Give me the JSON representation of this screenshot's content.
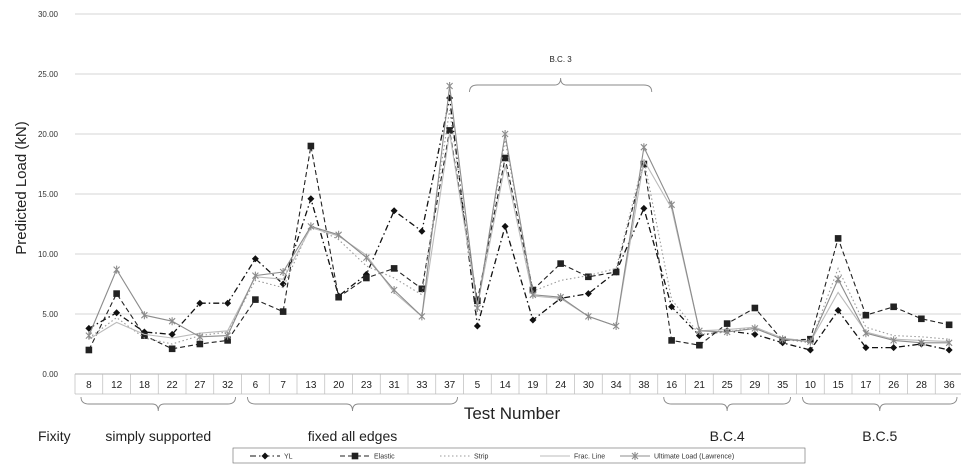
{
  "chart_data": {
    "type": "line",
    "title": "",
    "ylabel": "Predicted Load (kN)",
    "xlabel": "Test Number",
    "ylim": [
      0,
      30
    ],
    "y_ticks": [
      "0.00",
      "5.00",
      "10.00",
      "15.00",
      "20.00",
      "25.00",
      "30.00"
    ],
    "grid": true,
    "categories": [
      "8",
      "12",
      "18",
      "22",
      "27",
      "32",
      "6",
      "7",
      "13",
      "20",
      "23",
      "31",
      "33",
      "37",
      "5",
      "14",
      "19",
      "24",
      "30",
      "34",
      "38",
      "16",
      "21",
      "25",
      "29",
      "35",
      "10",
      "15",
      "17",
      "26",
      "28",
      "36"
    ],
    "groups_label": "Fixity",
    "groups": [
      {
        "label": "simply supported",
        "start": 0,
        "end": 5,
        "brace_position": "below"
      },
      {
        "label": "fixed all edges",
        "start": 6,
        "end": 13,
        "brace_position": "below"
      },
      {
        "label": "B.C. 3",
        "start": 14,
        "end": 20,
        "brace_position": "above"
      },
      {
        "label": "B.C.4",
        "start": 21,
        "end": 25,
        "brace_position": "below"
      },
      {
        "label": "B.C.5",
        "start": 26,
        "end": 31,
        "brace_position": "below"
      }
    ],
    "series": [
      {
        "name": "YL",
        "color": "#111111",
        "style": "dash-dot",
        "marker": "diamond",
        "values": [
          3.8,
          5.1,
          3.5,
          3.3,
          5.9,
          5.9,
          9.6,
          7.5,
          14.6,
          6.5,
          8.3,
          13.6,
          11.9,
          23.0,
          4.0,
          12.3,
          4.5,
          6.3,
          6.7,
          8.5,
          13.8,
          5.6,
          3.2,
          3.6,
          3.3,
          2.6,
          2.0,
          5.3,
          2.2,
          2.2,
          2.5,
          2.0
        ]
      },
      {
        "name": "Elastic",
        "color": "#222222",
        "style": "dashed",
        "marker": "square",
        "values": [
          2.0,
          6.7,
          3.2,
          2.1,
          2.5,
          2.8,
          6.2,
          5.2,
          19.0,
          6.4,
          8.0,
          8.8,
          7.1,
          20.3,
          6.1,
          18.0,
          7.0,
          9.2,
          8.1,
          8.5,
          17.5,
          2.8,
          2.4,
          4.2,
          5.5,
          2.8,
          2.9,
          11.3,
          4.9,
          5.6,
          4.6,
          4.1
        ]
      },
      {
        "name": "Strip",
        "color": "#999999",
        "style": "dotted",
        "marker": "none",
        "values": [
          3.0,
          4.7,
          3.0,
          2.5,
          3.2,
          3.5,
          7.8,
          7.2,
          12.4,
          11.2,
          9.0,
          8.0,
          6.6,
          22.0,
          5.5,
          19.5,
          6.9,
          7.8,
          8.2,
          8.8,
          17.9,
          6.2,
          3.3,
          3.5,
          3.9,
          2.9,
          2.6,
          8.8,
          3.9,
          3.2,
          3.1,
          2.9
        ]
      },
      {
        "name": "Frac. Line",
        "color": "#bbbbbb",
        "style": "solid",
        "marker": "none",
        "values": [
          2.9,
          4.3,
          3.3,
          3.0,
          3.4,
          3.6,
          8.1,
          7.9,
          12.2,
          11.5,
          9.9,
          6.8,
          4.8,
          20.1,
          5.7,
          17.4,
          6.5,
          6.3,
          4.8,
          4.0,
          17.8,
          13.8,
          3.6,
          3.7,
          3.9,
          3.0,
          2.7,
          6.8,
          3.5,
          2.9,
          2.8,
          2.7
        ]
      },
      {
        "name": "Ultimate Load (Lawrence)",
        "color": "#8c8c8c",
        "style": "solid",
        "marker": "star",
        "values": [
          3.2,
          8.7,
          4.9,
          4.4,
          3.1,
          3.2,
          8.2,
          8.5,
          12.3,
          11.6,
          9.7,
          7.0,
          4.8,
          24.0,
          5.5,
          20.0,
          6.6,
          6.4,
          4.8,
          4.0,
          18.9,
          14.1,
          3.6,
          3.5,
          3.8,
          2.9,
          2.7,
          7.9,
          3.4,
          2.8,
          2.6,
          2.6
        ]
      }
    ]
  }
}
